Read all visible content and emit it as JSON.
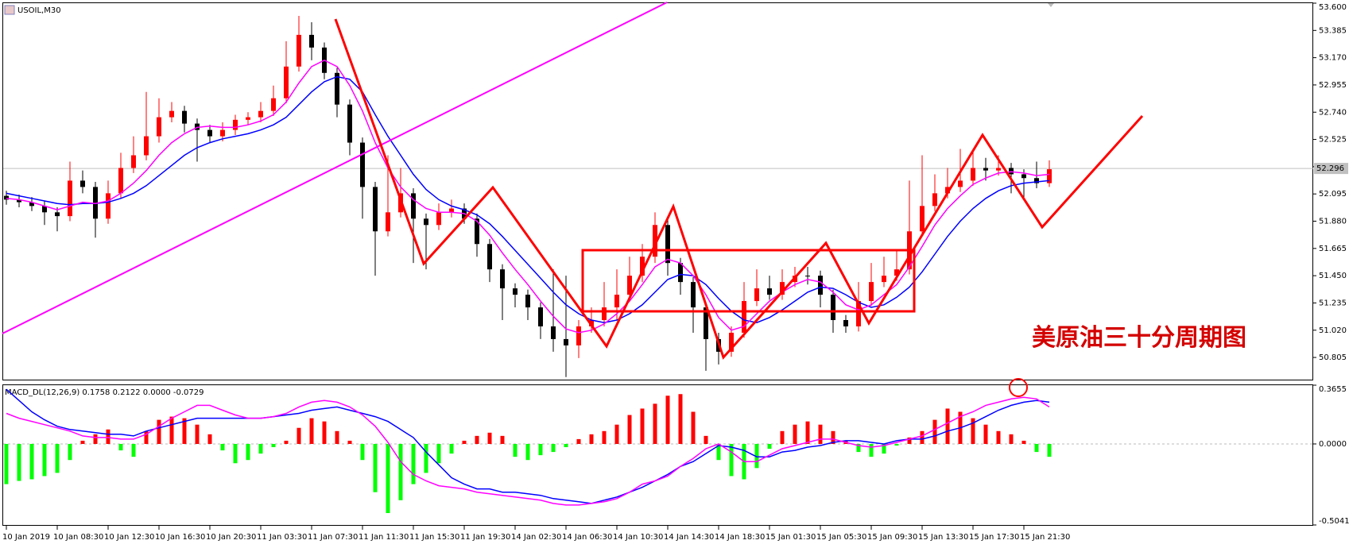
{
  "chart_data": [
    {
      "type": "candlestick",
      "title": "USOIL,M30",
      "categories": [
        "10 Jan 2019",
        null,
        null,
        null,
        "10 Jan 08:30",
        null,
        null,
        null,
        "10 Jan 12:30",
        null,
        null,
        null,
        "10 Jan 16:30",
        null,
        null,
        null,
        "10 Jan 20:30",
        null,
        null,
        null,
        "11 Jan 03:30",
        null,
        null,
        null,
        "11 Jan 07:30",
        null,
        null,
        null,
        "11 Jan 11:30",
        null,
        null,
        null,
        "11 Jan 15:30",
        null,
        null,
        null,
        "11 Jan 19:30",
        null,
        null,
        null,
        "14 Jan 02:30",
        null,
        null,
        null,
        "14 Jan 06:30",
        null,
        null,
        null,
        "14 Jan 10:30",
        null,
        null,
        null,
        "14 Jan 14:30",
        null,
        null,
        null,
        "14 Jan 18:30",
        null,
        null,
        null,
        "15 Jan 01:30",
        null,
        null,
        null,
        "15 Jan 05:30",
        null,
        null,
        null,
        "15 Jan 09:30",
        null,
        null,
        null,
        "15 Jan 13:30",
        null,
        null,
        null,
        "15 Jan 17:30",
        null,
        null,
        null,
        "15 Jan 21:30",
        null,
        null
      ],
      "open": [
        52.08,
        52.05,
        52.03,
        52.0,
        51.95,
        51.92,
        52.2,
        52.15,
        51.9,
        52.1,
        52.3,
        52.4,
        52.55,
        52.7,
        52.75,
        52.65,
        52.6,
        52.55,
        52.6,
        52.68,
        52.7,
        52.75,
        52.85,
        53.1,
        53.35,
        53.25,
        53.05,
        52.8,
        52.5,
        52.15,
        51.8,
        51.95,
        52.1,
        51.9,
        51.85,
        51.95,
        51.98,
        51.9,
        51.7,
        51.5,
        51.35,
        51.3,
        51.2,
        51.05,
        50.95,
        50.9,
        51.05,
        51.1,
        51.2,
        51.3,
        51.45,
        51.6,
        51.85,
        51.55,
        51.4,
        51.2,
        50.95,
        50.85,
        51.0,
        51.25,
        51.35,
        51.3,
        51.4,
        51.45,
        51.45,
        51.3,
        51.1,
        51.05,
        51.25,
        51.4,
        51.45,
        51.5,
        51.8,
        52.0,
        52.1,
        52.15,
        52.2,
        52.3,
        52.28,
        52.3,
        52.25,
        52.22,
        52.18
      ],
      "high": [
        52.12,
        52.09,
        52.07,
        52.04,
        51.99,
        52.35,
        52.28,
        52.19,
        52.2,
        52.42,
        52.55,
        52.9,
        52.85,
        52.82,
        52.79,
        52.69,
        52.64,
        52.66,
        52.72,
        52.74,
        52.82,
        52.95,
        53.3,
        53.5,
        53.45,
        53.29,
        53.09,
        52.84,
        52.54,
        52.19,
        52.4,
        52.3,
        52.14,
        51.94,
        52.02,
        52.05,
        52.02,
        51.94,
        51.74,
        51.54,
        51.39,
        51.34,
        51.24,
        51.5,
        51.45,
        51.1,
        51.2,
        51.4,
        51.5,
        51.6,
        51.7,
        51.95,
        51.9,
        51.59,
        51.44,
        51.24,
        51.0,
        51.05,
        51.4,
        51.5,
        51.45,
        51.5,
        51.52,
        51.52,
        51.49,
        51.34,
        51.14,
        51.4,
        51.55,
        51.6,
        51.65,
        52.2,
        52.4,
        52.25,
        52.3,
        52.45,
        52.45,
        52.38,
        52.4,
        52.34,
        52.29,
        52.35,
        52.36
      ],
      "low": [
        52.01,
        51.99,
        51.96,
        51.85,
        51.8,
        51.88,
        52.1,
        51.75,
        51.86,
        52.06,
        52.26,
        52.36,
        52.5,
        52.66,
        52.58,
        52.35,
        52.5,
        52.51,
        52.56,
        52.64,
        52.66,
        52.71,
        52.81,
        53.06,
        53.15,
        53.0,
        52.7,
        52.4,
        51.9,
        51.45,
        51.76,
        51.91,
        51.55,
        51.5,
        51.81,
        51.91,
        51.86,
        51.6,
        51.4,
        51.1,
        51.2,
        51.1,
        50.95,
        50.85,
        50.65,
        50.8,
        51.0,
        51.05,
        51.1,
        51.25,
        51.4,
        51.55,
        51.45,
        51.3,
        51.0,
        50.7,
        50.75,
        50.81,
        50.96,
        51.21,
        51.26,
        51.26,
        51.36,
        51.38,
        51.2,
        51.0,
        51.0,
        51.01,
        51.21,
        51.36,
        51.41,
        51.46,
        51.76,
        51.96,
        52.06,
        52.11,
        52.16,
        52.2,
        52.24,
        52.1,
        52.05,
        52.14,
        52.15
      ],
      "close": [
        52.05,
        52.03,
        52.0,
        51.95,
        51.92,
        52.2,
        52.15,
        51.9,
        52.1,
        52.3,
        52.4,
        52.55,
        52.7,
        52.75,
        52.65,
        52.6,
        52.55,
        52.6,
        52.68,
        52.7,
        52.75,
        52.85,
        53.1,
        53.35,
        53.25,
        53.05,
        52.8,
        52.5,
        52.15,
        51.8,
        51.95,
        52.1,
        51.9,
        51.85,
        51.95,
        51.98,
        51.9,
        51.7,
        51.5,
        51.35,
        51.3,
        51.2,
        51.05,
        50.95,
        50.9,
        51.05,
        51.1,
        51.2,
        51.3,
        51.45,
        51.6,
        51.85,
        51.55,
        51.4,
        51.2,
        50.95,
        50.85,
        51.0,
        51.25,
        51.35,
        51.3,
        51.4,
        51.45,
        51.45,
        51.3,
        51.1,
        51.05,
        51.25,
        51.4,
        51.45,
        51.5,
        51.8,
        52.0,
        52.1,
        52.15,
        52.2,
        52.3,
        52.28,
        52.3,
        52.25,
        52.22,
        52.18,
        52.29
      ],
      "up_color": "#ff0000",
      "down_color": "#000000",
      "lines": [
        {
          "color": "#0000ff",
          "values": [
            52.1,
            52.08,
            52.06,
            52.04,
            52.02,
            52.01,
            52.02,
            52.02,
            52.03,
            52.06,
            52.1,
            52.16,
            52.24,
            52.32,
            52.4,
            52.46,
            52.5,
            52.53,
            52.55,
            52.57,
            52.6,
            52.64,
            52.7,
            52.8,
            52.9,
            52.98,
            53.02,
            53.0,
            52.9,
            52.72,
            52.55,
            52.4,
            52.25,
            52.13,
            52.05,
            52.0,
            51.97,
            51.93,
            51.86,
            51.76,
            51.65,
            51.54,
            51.43,
            51.32,
            51.22,
            51.15,
            51.1,
            51.08,
            51.1,
            51.15,
            51.22,
            51.32,
            51.42,
            51.46,
            51.45,
            51.38,
            51.27,
            51.17,
            51.1,
            51.08,
            51.12,
            51.18,
            51.25,
            51.32,
            51.36,
            51.35,
            51.3,
            51.24,
            51.2,
            51.22,
            51.28,
            51.36,
            51.48,
            51.62,
            51.76,
            51.88,
            51.98,
            52.06,
            52.12,
            52.16,
            52.18,
            52.19,
            52.2
          ]
        },
        {
          "color": "#ff00ff",
          "values": [
            52.06,
            52.05,
            52.03,
            52.0,
            51.97,
            52.0,
            52.03,
            52.02,
            52.04,
            52.1,
            52.18,
            52.28,
            52.4,
            52.5,
            52.57,
            52.62,
            52.63,
            52.62,
            52.62,
            52.64,
            52.67,
            52.72,
            52.82,
            52.97,
            53.1,
            53.15,
            53.1,
            52.95,
            52.75,
            52.5,
            52.3,
            52.15,
            52.05,
            51.98,
            51.95,
            51.95,
            51.94,
            51.88,
            51.77,
            51.63,
            51.5,
            51.38,
            51.25,
            51.13,
            51.03,
            51.0,
            51.02,
            51.07,
            51.15,
            51.25,
            51.38,
            51.52,
            51.58,
            51.55,
            51.45,
            51.3,
            51.12,
            51.02,
            51.05,
            51.15,
            51.25,
            51.32,
            51.38,
            51.42,
            51.4,
            51.32,
            51.22,
            51.18,
            51.22,
            51.3,
            51.38,
            51.52,
            51.68,
            51.85,
            51.98,
            52.08,
            52.17,
            52.22,
            52.26,
            52.27,
            52.26,
            52.24,
            52.25
          ]
        }
      ],
      "current_price": 52.296,
      "ylim": [
        50.63,
        53.6
      ],
      "yticks": [
        {
          "value": 53.6,
          "label": "53.600"
        },
        53.385,
        {
          "value": 53.17,
          "label": "53.170"
        },
        52.955,
        {
          "value": 52.74,
          "label": "52.740"
        },
        52.525,
        {
          "value": 52.31,
          "label": "52.310"
        },
        52.095,
        {
          "value": 51.88,
          "label": "51.880"
        },
        51.665,
        {
          "value": 51.45,
          "label": "51.450"
        },
        51.235,
        {
          "value": 51.02,
          "label": "51.020"
        },
        50.805
      ],
      "annotation": "美原油三十分周期图"
    },
    {
      "type": "macd",
      "title": "MACD_DL(12,26,9) 0.1758 0.2122 0.0000 -0.0729",
      "histogram": {
        "up_color": "#ff0000",
        "down_color": "#00ff00",
        "values": [
          -0.25,
          -0.23,
          -0.22,
          -0.2,
          -0.18,
          -0.1,
          0.02,
          0.06,
          0.09,
          -0.04,
          -0.08,
          0.08,
          0.15,
          0.17,
          0.16,
          0.12,
          0.06,
          -0.04,
          -0.12,
          -0.1,
          -0.06,
          -0.02,
          0.02,
          0.1,
          0.16,
          0.14,
          0.08,
          0.02,
          -0.1,
          -0.3,
          -0.43,
          -0.35,
          -0.25,
          -0.18,
          -0.12,
          -0.06,
          0.02,
          0.05,
          0.07,
          0.05,
          -0.08,
          -0.1,
          -0.07,
          -0.05,
          -0.02,
          0.03,
          0.06,
          0.08,
          0.12,
          0.18,
          0.22,
          0.25,
          0.3,
          0.31,
          0.2,
          0.05,
          -0.1,
          -0.2,
          -0.22,
          -0.15,
          -0.03,
          0.08,
          0.12,
          0.14,
          0.12,
          0.08,
          0.02,
          -0.05,
          -0.08,
          -0.06,
          -0.01,
          0.04,
          0.08,
          0.15,
          0.22,
          0.2,
          0.16,
          0.12,
          0.08,
          0.06,
          0.02,
          -0.05,
          -0.08
        ]
      },
      "lines": [
        {
          "color": "#0000ff",
          "values": [
            0.34,
            0.27,
            0.2,
            0.15,
            0.11,
            0.09,
            0.08,
            0.07,
            0.06,
            0.06,
            0.05,
            0.08,
            0.1,
            0.12,
            0.14,
            0.16,
            0.16,
            0.16,
            0.16,
            0.16,
            0.16,
            0.17,
            0.18,
            0.19,
            0.21,
            0.22,
            0.23,
            0.21,
            0.19,
            0.17,
            0.14,
            0.09,
            0.04,
            -0.05,
            -0.13,
            -0.21,
            -0.25,
            -0.28,
            -0.28,
            -0.3,
            -0.3,
            -0.31,
            -0.32,
            -0.34,
            -0.35,
            -0.36,
            -0.37,
            -0.35,
            -0.33,
            -0.3,
            -0.27,
            -0.23,
            -0.19,
            -0.14,
            -0.11,
            -0.06,
            -0.01,
            -0.02,
            -0.04,
            -0.08,
            -0.08,
            -0.05,
            -0.04,
            -0.02,
            -0.01,
            0.01,
            0.02,
            0.02,
            0.01,
            0.0,
            0.02,
            0.03,
            0.03,
            0.05,
            0.08,
            0.1,
            0.13,
            0.17,
            0.21,
            0.24,
            0.26,
            0.27,
            0.26
          ]
        },
        {
          "color": "#ff00ff",
          "values": [
            0.19,
            0.16,
            0.14,
            0.12,
            0.1,
            0.08,
            0.05,
            0.04,
            0.04,
            0.03,
            0.03,
            0.06,
            0.11,
            0.16,
            0.2,
            0.24,
            0.24,
            0.21,
            0.18,
            0.16,
            0.16,
            0.17,
            0.19,
            0.23,
            0.26,
            0.27,
            0.26,
            0.23,
            0.18,
            0.11,
            0.01,
            -0.11,
            -0.19,
            -0.23,
            -0.26,
            -0.27,
            -0.28,
            -0.3,
            -0.31,
            -0.32,
            -0.33,
            -0.34,
            -0.35,
            -0.37,
            -0.38,
            -0.38,
            -0.37,
            -0.36,
            -0.34,
            -0.3,
            -0.25,
            -0.23,
            -0.2,
            -0.14,
            -0.09,
            -0.03,
            0.0,
            -0.05,
            -0.11,
            -0.11,
            -0.07,
            -0.03,
            -0.01,
            0.01,
            0.03,
            0.03,
            0.01,
            -0.01,
            -0.02,
            -0.01,
            0.01,
            0.03,
            0.05,
            0.09,
            0.13,
            0.17,
            0.2,
            0.24,
            0.26,
            0.28,
            0.29,
            0.28,
            0.23
          ]
        }
      ],
      "ylim": [
        -0.5041,
        0.3655
      ],
      "yticks": [
        0.3655,
        {
          "value": 0,
          "label": "0.0000"
        },
        -0.5041
      ]
    }
  ]
}
